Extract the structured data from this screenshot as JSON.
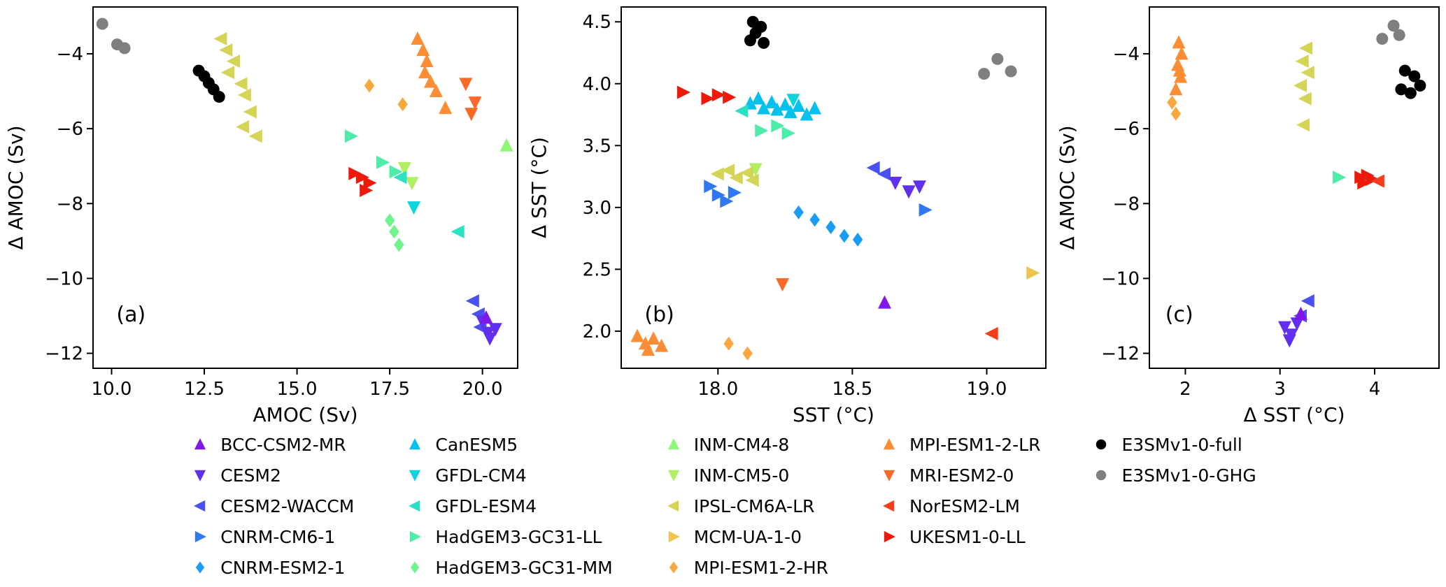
{
  "figure": {
    "background": "#ffffff"
  },
  "models": [
    {
      "name": "BCC-CSM2-MR",
      "marker": "triangle-up",
      "color": "#7d18e8"
    },
    {
      "name": "CESM2",
      "marker": "triangle-down",
      "color": "#6130ef"
    },
    {
      "name": "CESM2-WACCM",
      "marker": "triangle-left",
      "color": "#4b50f0"
    },
    {
      "name": "CNRM-CM6-1",
      "marker": "triangle-right",
      "color": "#2f78f2"
    },
    {
      "name": "CNRM-ESM2-1",
      "marker": "diamond",
      "color": "#199df4"
    },
    {
      "name": "CanESM5",
      "marker": "triangle-up",
      "color": "#06c0ed"
    },
    {
      "name": "GFDL-CM4",
      "marker": "triangle-down",
      "color": "#0cd4dc"
    },
    {
      "name": "GFDL-ESM4",
      "marker": "triangle-left",
      "color": "#2ce0c4"
    },
    {
      "name": "HadGEM3-GC31-LL",
      "marker": "triangle-right",
      "color": "#4deca9"
    },
    {
      "name": "HadGEM3-GC31-MM",
      "marker": "diamond",
      "color": "#70f48c"
    },
    {
      "name": "INM-CM4-8",
      "marker": "triangle-up",
      "color": "#90f878"
    },
    {
      "name": "INM-CM5-0",
      "marker": "triangle-down",
      "color": "#b0ef62"
    },
    {
      "name": "IPSL-CM6A-LR",
      "marker": "triangle-left",
      "color": "#d4d455"
    },
    {
      "name": "MCM-UA-1-0",
      "marker": "triangle-right",
      "color": "#ecc44e"
    },
    {
      "name": "MPI-ESM1-2-HR",
      "marker": "diamond",
      "color": "#f9a83f"
    },
    {
      "name": "MPI-ESM1-2-LR",
      "marker": "triangle-up",
      "color": "#fb8d34"
    },
    {
      "name": "MRI-ESM2-0",
      "marker": "triangle-down",
      "color": "#f96a28"
    },
    {
      "name": "NorESM2-LM",
      "marker": "triangle-left",
      "color": "#f53d1b"
    },
    {
      "name": "UKESM1-0-LL",
      "marker": "triangle-right",
      "color": "#ed1a0c"
    },
    {
      "name": "E3SMv1-0-full",
      "marker": "circle",
      "color": "#000000"
    },
    {
      "name": "E3SMv1-0-GHG",
      "marker": "circle",
      "color": "#7f7f7f"
    }
  ],
  "legend": {
    "columns": [
      [
        "BCC-CSM2-MR",
        "CESM2",
        "CESM2-WACCM",
        "CNRM-CM6-1",
        "CNRM-ESM2-1"
      ],
      [
        "CanESM5",
        "GFDL-CM4",
        "GFDL-ESM4",
        "HadGEM3-GC31-LL",
        "HadGEM3-GC31-MM"
      ],
      [
        "INM-CM4-8",
        "INM-CM5-0",
        "IPSL-CM6A-LR",
        "MCM-UA-1-0",
        "MPI-ESM1-2-HR"
      ],
      [
        "MPI-ESM1-2-LR",
        "MRI-ESM2-0",
        "NorESM2-LM",
        "UKESM1-0-LL"
      ],
      [
        "E3SMv1-0-full",
        "E3SMv1-0-GHG"
      ]
    ]
  },
  "chart_data": [
    {
      "id": "a",
      "type": "scatter",
      "panel_label": "(a)",
      "xlabel": "AMOC (Sv)",
      "ylabel": "Δ AMOC (Sv)",
      "xlim": [
        9.5,
        20.95
      ],
      "ylim": [
        -12.4,
        -2.75
      ],
      "xticks": [
        10.0,
        12.5,
        15.0,
        17.5,
        20.0
      ],
      "xtick_labels": [
        "10.0",
        "12.5",
        "15.0",
        "17.5",
        "20.0"
      ],
      "yticks": [
        -12,
        -10,
        -8,
        -6,
        -4
      ],
      "ytick_labels": [
        "−12",
        "−10",
        "−8",
        "−6",
        "−4"
      ],
      "series": [
        {
          "model": "E3SMv1-0-GHG",
          "points": [
            [
              9.75,
              -3.2
            ],
            [
              10.15,
              -3.75
            ],
            [
              10.35,
              -3.85
            ]
          ]
        },
        {
          "model": "E3SMv1-0-full",
          "points": [
            [
              12.35,
              -4.45
            ],
            [
              12.5,
              -4.6
            ],
            [
              12.62,
              -4.78
            ],
            [
              12.75,
              -4.95
            ],
            [
              12.9,
              -5.15
            ]
          ]
        },
        {
          "model": "IPSL-CM6A-LR",
          "points": [
            [
              12.95,
              -3.6
            ],
            [
              13.1,
              -3.9
            ],
            [
              13.3,
              -4.2
            ],
            [
              13.15,
              -4.5
            ],
            [
              13.5,
              -4.8
            ],
            [
              13.6,
              -5.1
            ],
            [
              13.75,
              -5.55
            ],
            [
              13.55,
              -5.95
            ],
            [
              13.9,
              -6.2
            ]
          ]
        },
        {
          "model": "MPI-ESM1-2-LR",
          "points": [
            [
              18.25,
              -3.6
            ],
            [
              18.4,
              -3.9
            ],
            [
              18.5,
              -4.2
            ],
            [
              18.45,
              -4.5
            ],
            [
              18.6,
              -4.75
            ],
            [
              18.75,
              -5.0
            ],
            [
              19.0,
              -5.45
            ]
          ]
        },
        {
          "model": "MRI-ESM2-0",
          "points": [
            [
              19.55,
              -4.8
            ],
            [
              19.8,
              -5.3
            ],
            [
              19.7,
              -5.6
            ]
          ]
        },
        {
          "model": "MPI-ESM1-2-HR",
          "points": [
            [
              16.95,
              -4.85
            ],
            [
              17.85,
              -5.35
            ]
          ]
        },
        {
          "model": "HadGEM3-GC31-LL",
          "points": [
            [
              16.45,
              -6.2
            ],
            [
              17.3,
              -6.9
            ],
            [
              17.65,
              -7.15
            ]
          ]
        },
        {
          "model": "INM-CM5-0",
          "points": [
            [
              17.9,
              -7.05
            ],
            [
              18.1,
              -7.45
            ]
          ]
        },
        {
          "model": "UKESM1-0-LL",
          "points": [
            [
              16.55,
              -7.2
            ],
            [
              16.75,
              -7.3
            ],
            [
              16.95,
              -7.45
            ],
            [
              16.85,
              -7.65
            ]
          ]
        },
        {
          "model": "GFDL-ESM4",
          "points": [
            [
              17.8,
              -7.3
            ],
            [
              19.35,
              -8.75
            ]
          ]
        },
        {
          "model": "GFDL-CM4",
          "points": [
            [
              18.15,
              -8.1
            ]
          ]
        },
        {
          "model": "HadGEM3-GC31-MM",
          "points": [
            [
              17.5,
              -8.45
            ],
            [
              17.62,
              -8.75
            ],
            [
              17.75,
              -9.1
            ]
          ]
        },
        {
          "model": "INM-CM4-8",
          "points": [
            [
              20.65,
              -6.45
            ]
          ]
        },
        {
          "model": "CESM2-WACCM",
          "points": [
            [
              19.75,
              -10.6
            ],
            [
              19.9,
              -10.95
            ],
            [
              19.95,
              -11.3
            ]
          ]
        },
        {
          "model": "CESM2",
          "points": [
            [
              20.0,
              -11.15
            ],
            [
              20.15,
              -11.45
            ],
            [
              20.35,
              -11.35
            ],
            [
              20.2,
              -11.6
            ]
          ]
        },
        {
          "model": "BCC-CSM2-MR",
          "points": [
            [
              20.1,
              -11.05
            ]
          ]
        }
      ]
    },
    {
      "id": "b",
      "type": "scatter",
      "panel_label": "(b)",
      "xlabel": "SST (°C)",
      "ylabel": "Δ SST (°C)",
      "xlim": [
        17.64,
        19.22
      ],
      "ylim": [
        1.7,
        4.62
      ],
      "xticks": [
        18.0,
        18.5,
        19.0
      ],
      "xtick_labels": [
        "18.0",
        "18.5",
        "19.0"
      ],
      "yticks": [
        2.0,
        2.5,
        3.0,
        3.5,
        4.0,
        4.5
      ],
      "ytick_labels": [
        "2.0",
        "2.5",
        "3.0",
        "3.5",
        "4.0",
        "4.5"
      ],
      "series": [
        {
          "model": "E3SMv1-0-full",
          "points": [
            [
              18.13,
              4.5
            ],
            [
              18.16,
              4.46
            ],
            [
              18.14,
              4.41
            ],
            [
              18.12,
              4.35
            ],
            [
              18.17,
              4.33
            ]
          ]
        },
        {
          "model": "E3SMv1-0-GHG",
          "points": [
            [
              19.04,
              4.2
            ],
            [
              18.99,
              4.08
            ],
            [
              19.09,
              4.1
            ]
          ]
        },
        {
          "model": "UKESM1-0-LL",
          "points": [
            [
              17.87,
              3.93
            ],
            [
              17.96,
              3.88
            ],
            [
              18.0,
              3.91
            ],
            [
              18.04,
              3.89
            ]
          ]
        },
        {
          "model": "CanESM5",
          "points": [
            [
              18.12,
              3.84
            ],
            [
              18.15,
              3.88
            ],
            [
              18.17,
              3.8
            ],
            [
              18.2,
              3.85
            ],
            [
              18.22,
              3.79
            ],
            [
              18.25,
              3.83
            ],
            [
              18.27,
              3.77
            ],
            [
              18.3,
              3.82
            ],
            [
              18.33,
              3.75
            ],
            [
              18.36,
              3.8
            ]
          ]
        },
        {
          "model": "GFDL-CM4",
          "points": [
            [
              18.28,
              3.87
            ]
          ]
        },
        {
          "model": "GFDL-ESM4",
          "points": [
            [
              18.09,
              3.78
            ]
          ]
        },
        {
          "model": "HadGEM3-GC31-LL",
          "points": [
            [
              18.16,
              3.62
            ],
            [
              18.22,
              3.66
            ],
            [
              18.26,
              3.6
            ]
          ]
        },
        {
          "model": "INM-CM5-0",
          "points": [
            [
              18.14,
              3.31
            ]
          ]
        },
        {
          "model": "IPSL-CM6A-LR",
          "points": [
            [
              18.0,
              3.27
            ],
            [
              18.04,
              3.3
            ],
            [
              18.07,
              3.24
            ],
            [
              18.11,
              3.28
            ],
            [
              18.13,
              3.22
            ]
          ]
        },
        {
          "model": "CESM2-WACCM",
          "points": [
            [
              18.58,
              3.32
            ],
            [
              18.62,
              3.27
            ]
          ]
        },
        {
          "model": "CESM2",
          "points": [
            [
              18.66,
              3.2
            ],
            [
              18.71,
              3.13
            ],
            [
              18.75,
              3.17
            ]
          ]
        },
        {
          "model": "CNRM-CM6-1",
          "points": [
            [
              17.97,
              3.17
            ],
            [
              18.0,
              3.1
            ],
            [
              18.03,
              3.05
            ],
            [
              18.06,
              3.12
            ],
            [
              18.77,
              2.98
            ]
          ]
        },
        {
          "model": "CNRM-ESM2-1",
          "points": [
            [
              18.3,
              2.96
            ],
            [
              18.36,
              2.9
            ],
            [
              18.42,
              2.84
            ],
            [
              18.47,
              2.77
            ],
            [
              18.52,
              2.74
            ]
          ]
        },
        {
          "model": "MRI-ESM2-0",
          "points": [
            [
              18.24,
              2.38
            ]
          ]
        },
        {
          "model": "BCC-CSM2-MR",
          "points": [
            [
              18.62,
              2.23
            ]
          ]
        },
        {
          "model": "MCM-UA-1-0",
          "points": [
            [
              19.17,
              2.47
            ]
          ]
        },
        {
          "model": "NorESM2-LM",
          "points": [
            [
              19.02,
              1.98
            ]
          ]
        },
        {
          "model": "MPI-ESM1-2-LR",
          "points": [
            [
              17.7,
              1.96
            ],
            [
              17.73,
              1.9
            ],
            [
              17.76,
              1.94
            ],
            [
              17.79,
              1.88
            ],
            [
              17.74,
              1.85
            ]
          ]
        },
        {
          "model": "MPI-ESM1-2-HR",
          "points": [
            [
              18.04,
              1.9
            ],
            [
              18.11,
              1.82
            ]
          ]
        }
      ]
    },
    {
      "id": "c",
      "type": "scatter",
      "panel_label": "(c)",
      "xlabel": "Δ SST (°C)",
      "ylabel": "Δ AMOC (Sv)",
      "xlim": [
        1.62,
        4.68
      ],
      "ylim": [
        -12.4,
        -2.75
      ],
      "xticks": [
        2,
        3,
        4
      ],
      "xtick_labels": [
        "2",
        "3",
        "4"
      ],
      "yticks": [
        -12,
        -10,
        -8,
        -6,
        -4
      ],
      "ytick_labels": [
        "−12",
        "−10",
        "−8",
        "−6",
        "−4"
      ],
      "series": [
        {
          "model": "MPI-ESM1-2-LR",
          "points": [
            [
              1.93,
              -3.7
            ],
            [
              1.96,
              -4.0
            ],
            [
              1.92,
              -4.3
            ],
            [
              1.95,
              -4.62
            ],
            [
              1.9,
              -4.95
            ],
            [
              1.94,
              -4.45
            ]
          ]
        },
        {
          "model": "MPI-ESM1-2-HR",
          "points": [
            [
              1.86,
              -5.3
            ],
            [
              1.9,
              -5.6
            ]
          ]
        },
        {
          "model": "IPSL-CM6A-LR",
          "points": [
            [
              3.28,
              -3.85
            ],
            [
              3.24,
              -4.2
            ],
            [
              3.3,
              -4.5
            ],
            [
              3.22,
              -4.85
            ],
            [
              3.27,
              -5.2
            ],
            [
              3.25,
              -5.9
            ]
          ]
        },
        {
          "model": "E3SMv1-0-GHG",
          "points": [
            [
              4.2,
              -3.25
            ],
            [
              4.08,
              -3.6
            ],
            [
              4.26,
              -3.5
            ]
          ]
        },
        {
          "model": "E3SMv1-0-full",
          "points": [
            [
              4.32,
              -4.45
            ],
            [
              4.42,
              -4.6
            ],
            [
              4.28,
              -4.95
            ],
            [
              4.38,
              -5.05
            ],
            [
              4.48,
              -4.85
            ]
          ]
        },
        {
          "model": "HadGEM3-GC31-LL",
          "points": [
            [
              3.62,
              -7.3
            ]
          ]
        },
        {
          "model": "UKESM1-0-LL",
          "points": [
            [
              3.85,
              -7.3
            ],
            [
              3.92,
              -7.25
            ],
            [
              3.88,
              -7.45
            ],
            [
              3.97,
              -7.35
            ]
          ]
        },
        {
          "model": "NorESM2-LM",
          "points": [
            [
              4.04,
              -7.4
            ]
          ]
        },
        {
          "model": "CESM2-WACCM",
          "points": [
            [
              3.3,
              -10.6
            ],
            [
              3.22,
              -11.0
            ]
          ]
        },
        {
          "model": "CESM2",
          "points": [
            [
              3.05,
              -11.3
            ],
            [
              3.12,
              -11.5
            ],
            [
              3.18,
              -11.2
            ],
            [
              3.1,
              -11.65
            ]
          ]
        },
        {
          "model": "BCC-CSM2-MR",
          "points": [
            [
              3.22,
              -10.95
            ]
          ]
        }
      ]
    }
  ]
}
